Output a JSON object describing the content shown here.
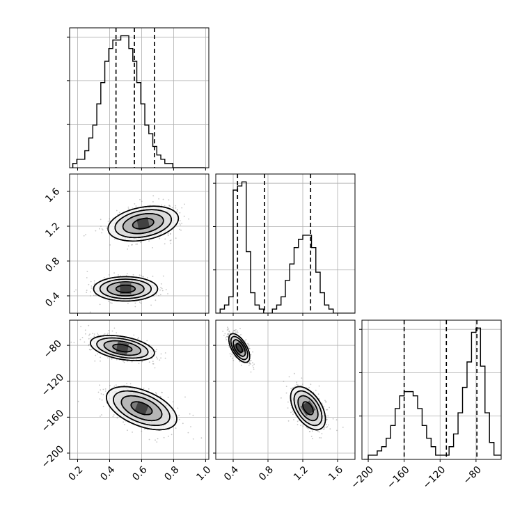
{
  "chart_data": {
    "type": "corner",
    "title": "",
    "grid": true,
    "quantile_lines": true,
    "colors": {
      "hist": "#000000",
      "contour": "#000000",
      "grid": "#b0b0b0",
      "points": "#808080"
    },
    "diagonal": [
      {
        "param_index": 0,
        "type": "histogram",
        "xlim": [
          0.15,
          1.02
        ],
        "bin_edges": [
          0.17,
          0.195,
          0.22,
          0.245,
          0.27,
          0.295,
          0.32,
          0.345,
          0.37,
          0.395,
          0.42,
          0.445,
          0.47,
          0.495,
          0.52,
          0.545,
          0.57,
          0.595,
          0.62,
          0.645,
          0.67,
          0.695,
          0.72,
          0.745,
          0.77,
          0.795,
          0.82,
          0.845,
          0.87,
          0.895,
          0.92,
          0.945,
          0.97,
          0.995
        ],
        "counts": [
          1,
          2,
          2,
          4,
          7,
          10,
          15,
          20,
          25,
          28,
          30,
          30,
          31,
          31,
          28,
          25,
          20,
          15,
          10,
          8,
          5,
          3,
          2,
          1,
          1,
          0,
          0,
          0,
          0,
          0,
          0,
          0,
          0
        ],
        "quantiles": [
          0.44,
          0.555,
          0.68
        ]
      },
      {
        "param_index": 1,
        "type": "histogram",
        "xlim": [
          0.2,
          1.8
        ],
        "bin_edges": [
          0.2,
          0.25,
          0.3,
          0.35,
          0.4,
          0.45,
          0.5,
          0.55,
          0.6,
          0.65,
          0.7,
          0.75,
          0.8,
          0.85,
          0.9,
          0.95,
          1.0,
          1.05,
          1.1,
          1.15,
          1.2,
          1.25,
          1.3,
          1.35,
          1.4,
          1.45,
          1.5,
          1.55,
          1.6,
          1.65,
          1.7,
          1.75,
          1.8
        ],
        "counts": [
          0,
          1,
          2,
          4,
          30,
          31,
          32,
          15,
          5,
          2,
          1,
          0,
          0,
          1,
          2,
          4,
          8,
          12,
          16,
          18,
          19,
          19,
          16,
          10,
          5,
          2,
          1,
          0,
          0,
          0,
          0,
          0
        ],
        "quantiles": [
          0.45,
          0.76,
          1.29
        ]
      },
      {
        "param_index": 2,
        "type": "histogram",
        "xlim": [
          -207,
          -52
        ],
        "bin_edges": [
          -205,
          -200,
          -195,
          -190,
          -185,
          -180,
          -175,
          -170,
          -165,
          -160,
          -155,
          -150,
          -145,
          -140,
          -135,
          -130,
          -125,
          -120,
          -115,
          -110,
          -105,
          -100,
          -95,
          -90,
          -85,
          -80,
          -75,
          -70,
          -65,
          -60,
          -55,
          -50
        ],
        "counts": [
          0,
          1,
          1,
          2,
          3,
          5,
          8,
          12,
          15,
          16,
          16,
          15,
          12,
          8,
          5,
          3,
          1,
          1,
          1,
          3,
          6,
          11,
          17,
          23,
          30,
          31,
          22,
          11,
          4,
          1,
          1
        ],
        "quantiles": [
          -160,
          -113,
          -79
        ]
      }
    ],
    "pairs": [
      {
        "x_param": 0,
        "y_param": 1,
        "xlim": [
          0.15,
          1.02
        ],
        "ylim": [
          0.2,
          1.8
        ],
        "clusters": [
          {
            "mean": [
              0.61,
              1.23
            ],
            "sd": [
              0.11,
              0.1
            ],
            "rho": 0.3,
            "n": 550
          },
          {
            "mean": [
              0.5,
              0.48
            ],
            "sd": [
              0.1,
              0.07
            ],
            "rho": 0.0,
            "n": 550
          }
        ]
      },
      {
        "x_param": 0,
        "y_param": 2,
        "xlim": [
          0.15,
          1.02
        ],
        "ylim": [
          -207,
          -52
        ],
        "clusters": [
          {
            "mean": [
              0.48,
              -83
            ],
            "sd": [
              0.1,
              7.0
            ],
            "rho": -0.4,
            "n": 550
          },
          {
            "mean": [
              0.6,
              -150
            ],
            "sd": [
              0.11,
              12.0
            ],
            "rho": -0.5,
            "n": 550
          }
        ]
      },
      {
        "x_param": 1,
        "y_param": 2,
        "xlim": [
          0.2,
          1.8
        ],
        "ylim": [
          -207,
          -52
        ],
        "clusters": [
          {
            "mean": [
              0.47,
              -83
            ],
            "sd": [
              0.06,
              8.0
            ],
            "rho": -0.6,
            "n": 500
          },
          {
            "mean": [
              1.26,
              -150
            ],
            "sd": [
              0.1,
              12.0
            ],
            "rho": -0.5,
            "n": 600
          }
        ]
      }
    ],
    "tick_labels": {
      "x_bottom": [
        {
          "panel": 0,
          "values": [
            0.2,
            0.4,
            0.6,
            0.8,
            1.0
          ],
          "labels": [
            "0.2",
            "0.4",
            "0.6",
            "0.8",
            "1.0"
          ]
        },
        {
          "panel": 1,
          "values": [
            0.4,
            0.8,
            1.2,
            1.6
          ],
          "labels": [
            "0.4",
            "0.8",
            "1.2",
            "1.6"
          ]
        },
        {
          "panel": 2,
          "values": [
            -200,
            -160,
            -120,
            -80
          ],
          "labels": [
            "−200",
            "−160",
            "−120",
            "−80"
          ]
        }
      ],
      "y_left": [
        {
          "row": 1,
          "values": [
            0.4,
            0.8,
            1.2,
            1.6
          ],
          "labels": [
            "0.4",
            "0.8",
            "1.2",
            "1.6"
          ]
        },
        {
          "row": 2,
          "values": [
            -200,
            -160,
            -120,
            -80
          ],
          "labels": [
            "−200",
            "−160",
            "−120",
            "−80"
          ]
        }
      ]
    }
  }
}
